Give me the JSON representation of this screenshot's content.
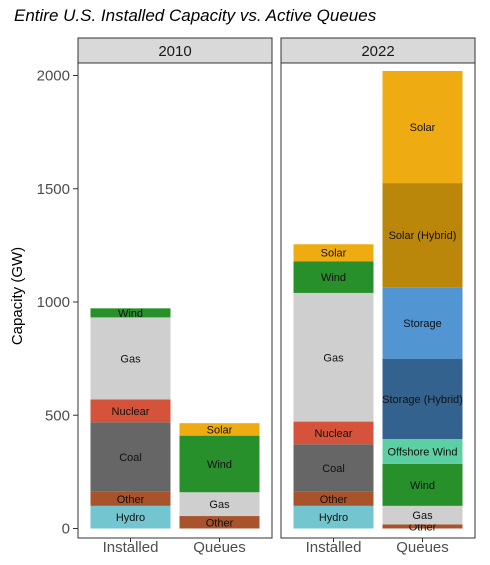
{
  "chart_data": {
    "type": "bar",
    "stacked": true,
    "title": "Entire U.S. Installed Capacity vs. Active Queues",
    "ylabel": "Capacity (GW)",
    "xlabel": "",
    "ylim": [
      0,
      2100
    ],
    "yticks": [
      0,
      500,
      1000,
      1500,
      2000
    ],
    "categories": [
      "Installed",
      "Queues"
    ],
    "legend": "none",
    "grid": false,
    "panels": [
      {
        "name": "2010",
        "stacks": [
          {
            "category": "Installed",
            "segments": [
              {
                "label": "Hydro",
                "value": 100,
                "color": "#73c5cf"
              },
              {
                "label": "Other",
                "value": 62,
                "color": "#a8532c"
              },
              {
                "label": "Coal",
                "value": 307,
                "color": "#666666"
              },
              {
                "label": "Nuclear",
                "value": 101,
                "color": "#d5523b"
              },
              {
                "label": "Gas",
                "value": 362,
                "color": "#cfcfcf"
              },
              {
                "label": "Wind",
                "value": 40,
                "color": "#27902a"
              }
            ]
          },
          {
            "category": "Queues",
            "segments": [
              {
                "label": "Other",
                "value": 55,
                "color": "#a8532c"
              },
              {
                "label": "Gas",
                "value": 105,
                "color": "#cfcfcf"
              },
              {
                "label": "Wind",
                "value": 250,
                "color": "#27902a"
              },
              {
                "label": "Solar",
                "value": 55,
                "color": "#eeac12"
              }
            ]
          }
        ]
      },
      {
        "name": "2022",
        "stacks": [
          {
            "category": "Installed",
            "segments": [
              {
                "label": "Hydro",
                "value": 100,
                "color": "#73c5cf"
              },
              {
                "label": "Other",
                "value": 62,
                "color": "#a8532c"
              },
              {
                "label": "Coal",
                "value": 210,
                "color": "#666666"
              },
              {
                "label": "Nuclear",
                "value": 100,
                "color": "#d5523b"
              },
              {
                "label": "Gas",
                "value": 568,
                "color": "#cfcfcf"
              },
              {
                "label": "Wind",
                "value": 140,
                "color": "#27902a"
              },
              {
                "label": "Solar",
                "value": 75,
                "color": "#eeac12"
              }
            ]
          },
          {
            "category": "Queues",
            "segments": [
              {
                "label": "Other",
                "value": 18,
                "color": "#a8532c"
              },
              {
                "label": "Gas",
                "value": 82,
                "color": "#cfcfcf"
              },
              {
                "label": "Wind",
                "value": 185,
                "color": "#27902a"
              },
              {
                "label": "Offshore Wind",
                "value": 110,
                "color": "#5ccfa5"
              },
              {
                "label": "Storage (Hybrid)",
                "value": 355,
                "color": "#33628e"
              },
              {
                "label": "Storage",
                "value": 315,
                "color": "#5195d2"
              },
              {
                "label": "Solar (Hybrid)",
                "value": 460,
                "color": "#ba870a"
              },
              {
                "label": "Solar",
                "value": 495,
                "color": "#eeac12"
              }
            ]
          }
        ]
      }
    ]
  }
}
